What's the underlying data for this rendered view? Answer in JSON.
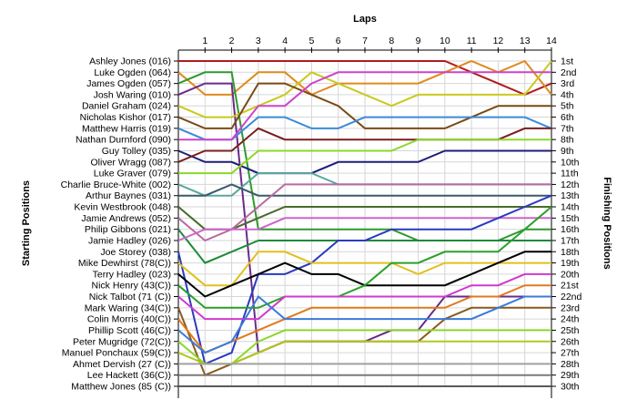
{
  "chart_data": {
    "type": "line",
    "title": "",
    "xlabel": "Laps",
    "ylabel": "Starting Positions",
    "y2label": "Finishing Positions",
    "x": [
      0,
      1,
      2,
      3,
      4,
      5,
      6,
      7,
      8,
      9,
      10,
      11,
      12,
      13,
      14
    ],
    "x_ticks": [
      "1",
      "2",
      "3",
      "4",
      "5",
      "6",
      "7",
      "8",
      "9",
      "10",
      "11",
      "12",
      "13",
      "14"
    ],
    "ylim": [
      1,
      30
    ],
    "y_inverted": true,
    "grid": true,
    "drivers": [
      "Ashley Jones (016)",
      "Luke Ogden (064)",
      "James Ogden (057)",
      "Josh Waring (010)",
      "Daniel Graham (024)",
      "Nicholas Kishor (017)",
      "Matthew Harris (019)",
      "Nathan Durnford (090)",
      "Guy Tolley (035)",
      "Oliver Wragg (087)",
      "Luke Graver (079)",
      "Charlie Bruce-White (002)",
      "Arthur Baynes (031)",
      "Kevin Westbrook (048)",
      "Jamie Andrews (052)",
      "Philip Gibbons (021)",
      "Jamie Hadley (026)",
      "Joe Storey (038)",
      "Mike Dewhirst (78(C))",
      "Terry Hadley (023)",
      "Nick Henry (43(C))",
      "Nick Talbot (71 (C))",
      "Mark Waring (34(C))",
      "Colin Morris (40(C))",
      "Phillip Scott (46(C))",
      "Peter Mugridge (72(C))",
      "Manuel Ponchaux (59(C))",
      "Ahmet Dervish (27 (C))",
      "Lee Hackett (36(C))",
      "Matthew Jones (85 (C))"
    ],
    "finish_labels": [
      "1st",
      "2nd",
      "3rd",
      "4th",
      "5th",
      "6th",
      "7th",
      "8th",
      "9th",
      "10th",
      "11th",
      "12th",
      "13th",
      "14th",
      "15th",
      "16th",
      "17th",
      "18th",
      "19th",
      "20th",
      "21st",
      "22nd",
      "23rd",
      "24th",
      "25th",
      "26th",
      "27th",
      "28th",
      "29th",
      "30th"
    ],
    "series": [
      {
        "color": "#b01c1c",
        "values": [
          1,
          1,
          1,
          1,
          1,
          1,
          1,
          1,
          1,
          1,
          1,
          2,
          3,
          4,
          3
        ]
      },
      {
        "color": "#e08a1e",
        "values": [
          2,
          4,
          4,
          2,
          2,
          4,
          3,
          3,
          3,
          3,
          2,
          1,
          2,
          1,
          4
        ]
      },
      {
        "color": "#2e9a2e",
        "values": [
          3,
          2,
          2,
          16,
          16,
          16,
          16,
          16,
          16,
          17,
          17,
          17,
          17,
          16,
          16
        ]
      },
      {
        "color": "#6a2a8a",
        "values": [
          4,
          3,
          3,
          27,
          26,
          26,
          26,
          26,
          25,
          25,
          22,
          22,
          22,
          22,
          22
        ]
      },
      {
        "color": "#c9c91e",
        "values": [
          5,
          6,
          6,
          5,
          4,
          2,
          3,
          4,
          5,
          4,
          4,
          4,
          4,
          4,
          1
        ]
      },
      {
        "color": "#7a4a14",
        "values": [
          6,
          7,
          7,
          3,
          3,
          4,
          5,
          7,
          7,
          7,
          7,
          6,
          5,
          5,
          5
        ]
      },
      {
        "color": "#3a8ad8",
        "values": [
          7,
          8,
          8,
          6,
          6,
          7,
          7,
          6,
          6,
          6,
          6,
          6,
          6,
          6,
          7
        ]
      },
      {
        "color": "#cc44cc",
        "values": [
          8,
          8,
          8,
          5,
          5,
          3,
          2,
          2,
          2,
          2,
          2,
          2,
          2,
          2,
          2
        ]
      },
      {
        "color": "#1e1e7a",
        "values": [
          9,
          10,
          10,
          11,
          11,
          11,
          10,
          10,
          10,
          10,
          9,
          9,
          9,
          9,
          9
        ]
      },
      {
        "color": "#7a1e1e",
        "values": [
          10,
          9,
          9,
          7,
          8,
          8,
          8,
          8,
          8,
          8,
          8,
          8,
          8,
          7,
          7
        ]
      },
      {
        "color": "#8ad82a",
        "values": [
          11,
          11,
          11,
          9,
          9,
          9,
          9,
          9,
          9,
          8,
          8,
          8,
          8,
          8,
          8
        ]
      },
      {
        "color": "#5aa8a0",
        "values": [
          12,
          13,
          13,
          11,
          11,
          11,
          12,
          12,
          12,
          12,
          12,
          12,
          12,
          12,
          12
        ]
      },
      {
        "color": "#3a5a6a",
        "values": [
          13,
          13,
          12,
          13,
          13,
          13,
          13,
          13,
          13,
          13,
          13,
          13,
          13,
          13,
          13
        ]
      },
      {
        "color": "#4a6a2a",
        "values": [
          14,
          16,
          16,
          15,
          14,
          14,
          14,
          14,
          14,
          14,
          14,
          14,
          14,
          14,
          14
        ]
      },
      {
        "color": "#b86aa0",
        "values": [
          15,
          17,
          16,
          14,
          12,
          12,
          12,
          12,
          12,
          12,
          12,
          12,
          12,
          12,
          12
        ]
      },
      {
        "color": "#1e8a3a",
        "values": [
          16,
          19,
          18,
          17,
          17,
          17,
          17,
          17,
          17,
          17,
          17,
          17,
          17,
          17,
          17
        ]
      },
      {
        "color": "#cc66cc",
        "values": [
          17,
          16,
          16,
          16,
          15,
          15,
          15,
          15,
          15,
          15,
          15,
          15,
          15,
          15,
          15
        ]
      },
      {
        "color": "#2a3ac0",
        "values": [
          18,
          28,
          27,
          20,
          20,
          19,
          17,
          17,
          16,
          16,
          16,
          16,
          15,
          14,
          13
        ]
      },
      {
        "color": "#e0c01e",
        "values": [
          19,
          21,
          21,
          18,
          18,
          19,
          19,
          19,
          19,
          20,
          19,
          19,
          19,
          19,
          19
        ]
      },
      {
        "color": "#000000",
        "values": [
          20,
          22,
          21,
          20,
          19,
          20,
          20,
          21,
          21,
          21,
          21,
          20,
          19,
          18,
          18
        ]
      },
      {
        "color": "#2aa02a",
        "values": [
          21,
          23,
          23,
          23,
          22,
          22,
          22,
          21,
          19,
          19,
          18,
          18,
          18,
          16,
          14
        ]
      },
      {
        "color": "#d03acd",
        "values": [
          22,
          24,
          24,
          24,
          22,
          22,
          22,
          22,
          22,
          22,
          22,
          21,
          21,
          20,
          20
        ]
      },
      {
        "color": "#8a5a1e",
        "values": [
          23,
          29,
          28,
          27,
          26,
          26,
          26,
          26,
          26,
          26,
          24,
          23,
          23,
          23,
          23
        ]
      },
      {
        "color": "#e07a1e",
        "values": [
          24,
          27,
          26,
          25,
          24,
          23,
          23,
          23,
          23,
          23,
          23,
          22,
          22,
          21,
          21
        ]
      },
      {
        "color": "#3a7ad8",
        "values": [
          25,
          27,
          26,
          22,
          24,
          24,
          24,
          24,
          24,
          24,
          24,
          24,
          23,
          22,
          22
        ]
      },
      {
        "color": "#8ad82a",
        "values": [
          26,
          28,
          28,
          26,
          25,
          25,
          25,
          25,
          25,
          25,
          25,
          25,
          25,
          25,
          25
        ]
      },
      {
        "color": "#b0c820",
        "values": [
          27,
          28,
          28,
          27,
          26,
          26,
          26,
          26,
          26,
          26,
          26,
          26,
          26,
          26,
          26
        ]
      },
      {
        "color": "#a0a0a0",
        "values": [
          28,
          28,
          28,
          28,
          28,
          28,
          28,
          28,
          28,
          28,
          28,
          28,
          28,
          28,
          28
        ]
      },
      {
        "color": "#7a7a7a",
        "values": [
          29,
          29,
          29,
          29,
          29,
          29,
          29,
          29,
          29,
          29,
          29,
          29,
          29,
          29,
          29
        ]
      },
      {
        "color": "#5a5a5a",
        "values": [
          30,
          30,
          30,
          30,
          30,
          30,
          30,
          30,
          30,
          30,
          30,
          30,
          30,
          30,
          30
        ]
      }
    ]
  }
}
